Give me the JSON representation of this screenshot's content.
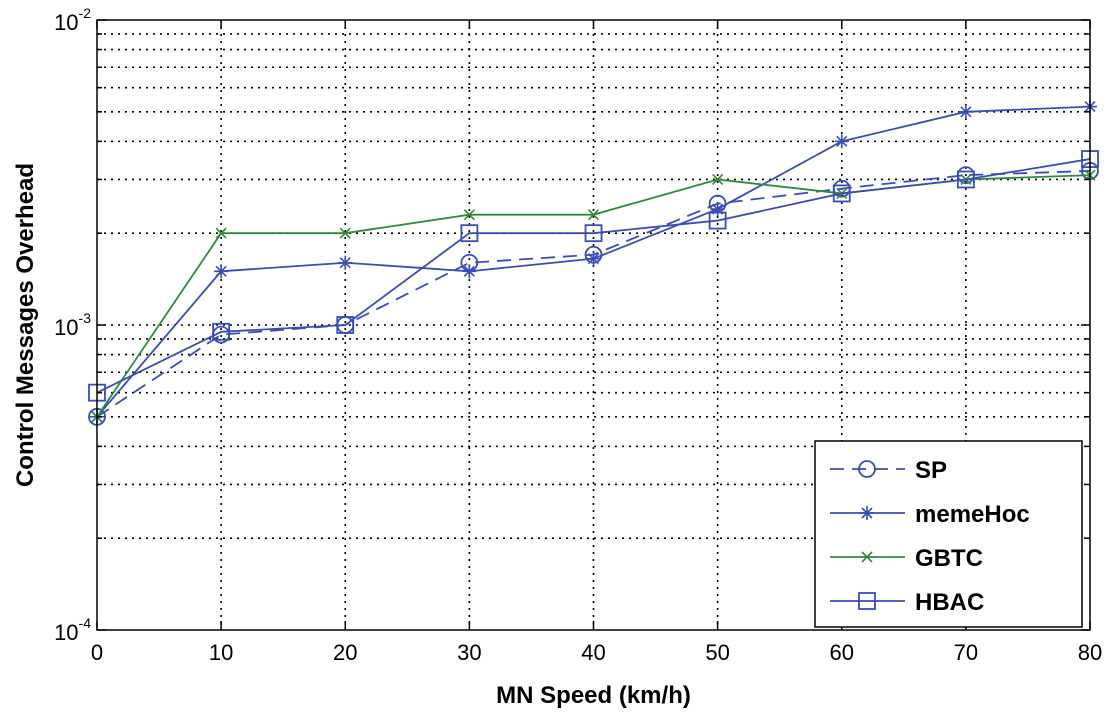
{
  "chart_data": {
    "type": "line",
    "title": "",
    "xlabel": "MN Speed (km/h)",
    "ylabel": "Control Messages Overhead",
    "yscale": "log",
    "xlim": [
      0,
      80
    ],
    "ylim": [
      0.0001,
      0.01
    ],
    "grid": true,
    "legend_position": "lower-right",
    "x": [
      0,
      10,
      20,
      30,
      40,
      50,
      60,
      70,
      80
    ],
    "x_tick_labels": [
      "0",
      "10",
      "20",
      "30",
      "40",
      "50",
      "60",
      "70",
      "80"
    ],
    "y_ticks": [
      {
        "base": "10",
        "exp": "-4",
        "value": 0.0001
      },
      {
        "base": "10",
        "exp": "-3",
        "value": 0.001
      },
      {
        "base": "10",
        "exp": "-2",
        "value": 0.01
      }
    ],
    "series": [
      {
        "name": "SP",
        "color": "#3a4db5",
        "dash": "dashed",
        "marker": "circle",
        "values": [
          0.0005,
          0.00093,
          0.001,
          0.0016,
          0.0017,
          0.0025,
          0.0028,
          0.0031,
          0.0032
        ]
      },
      {
        "name": "memeHoc",
        "color": "#3a4db5",
        "dash": "solid",
        "marker": "star",
        "values": [
          0.0005,
          0.0015,
          0.0016,
          0.0015,
          0.00165,
          0.0024,
          0.004,
          0.005,
          0.0052
        ]
      },
      {
        "name": "GBTC",
        "color": "#2e8b3a",
        "dash": "solid",
        "marker": "x",
        "values": [
          0.0005,
          0.002,
          0.002,
          0.0023,
          0.0023,
          0.003,
          0.0027,
          0.003,
          0.0031
        ]
      },
      {
        "name": "HBAC",
        "color": "#3a4db5",
        "dash": "solid",
        "marker": "square",
        "values": [
          0.0006,
          0.00095,
          0.001,
          0.002,
          0.002,
          0.0022,
          0.0027,
          0.003,
          0.0035
        ]
      }
    ]
  }
}
